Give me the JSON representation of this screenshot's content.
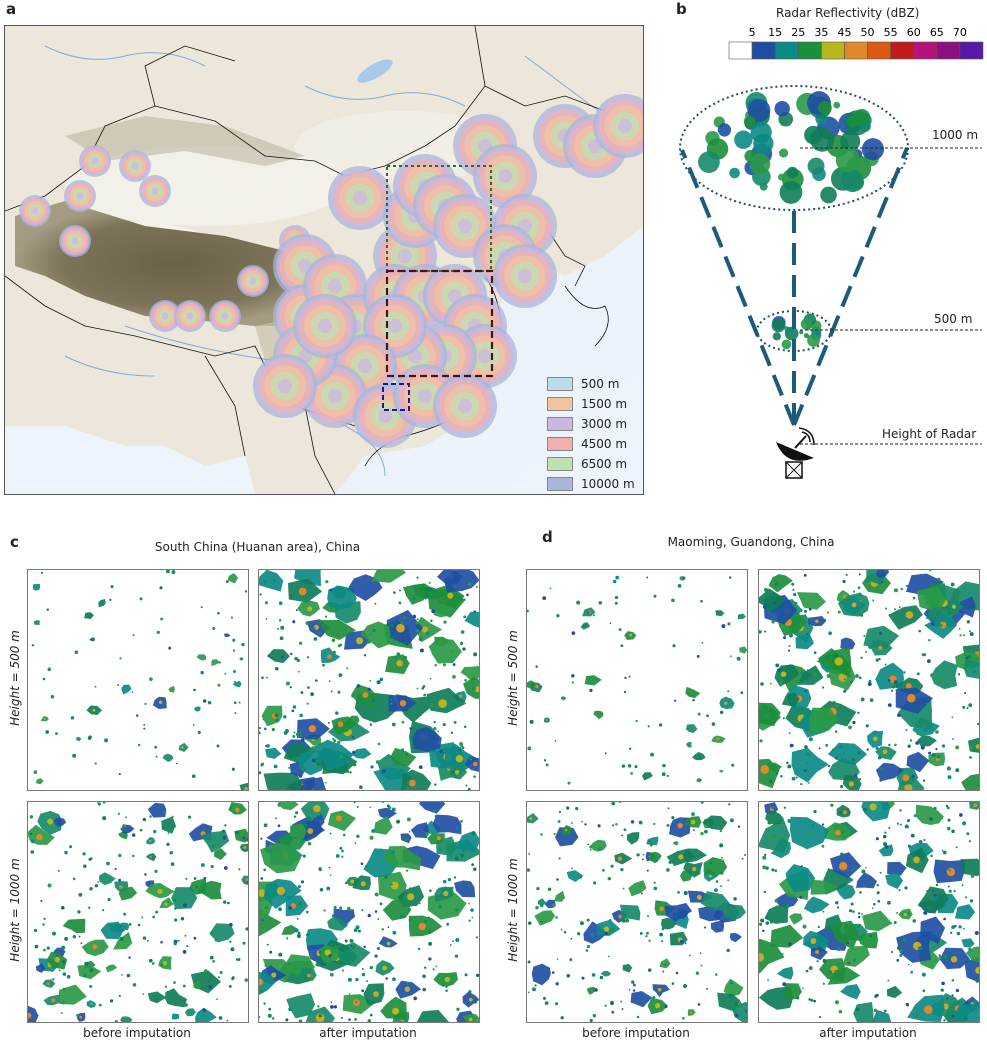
{
  "panel_labels": {
    "a": "a",
    "b": "b",
    "c": "c",
    "d": "d"
  },
  "panel_a": {
    "legend": [
      {
        "label": "500 m",
        "color": "#b9dce6"
      },
      {
        "label": "1500 m",
        "color": "#f2c3a2"
      },
      {
        "label": "3000 m",
        "color": "#cbb8e2"
      },
      {
        "label": "4500 m",
        "color": "#f0b1ae"
      },
      {
        "label": "6500 m",
        "color": "#bfe0b4"
      },
      {
        "label": "10000 m",
        "color": "#a9b6d8"
      }
    ]
  },
  "panel_b": {
    "colorbar_title": "Radar Reflectivity (dBZ)",
    "colorbar_ticks": [
      "5",
      "15",
      "25",
      "35",
      "45",
      "50",
      "55",
      "60",
      "65",
      "70"
    ],
    "colorbar_colors": [
      "#ffffff",
      "#1f4fa3",
      "#0c8a86",
      "#1c8e3c",
      "#b7b81e",
      "#e0892a",
      "#dd5a15",
      "#c01a1a",
      "#b5127a",
      "#8a117e",
      "#5a18a6"
    ],
    "height_labels": {
      "top": "1000 m",
      "mid": "500 m",
      "radar": "Height of Radar"
    }
  },
  "panel_c": {
    "title": "South China (Huanan area), China",
    "row_labels": [
      "Height = 500 m",
      "Height = 1000 m"
    ],
    "col_labels": [
      "before imputation",
      "after imputation"
    ]
  },
  "panel_d": {
    "title": "Maoming, Guandong, China",
    "row_labels": [
      "Height = 500 m",
      "Height = 1000 m"
    ],
    "col_labels": [
      "before imputation",
      "after imputation"
    ]
  }
}
